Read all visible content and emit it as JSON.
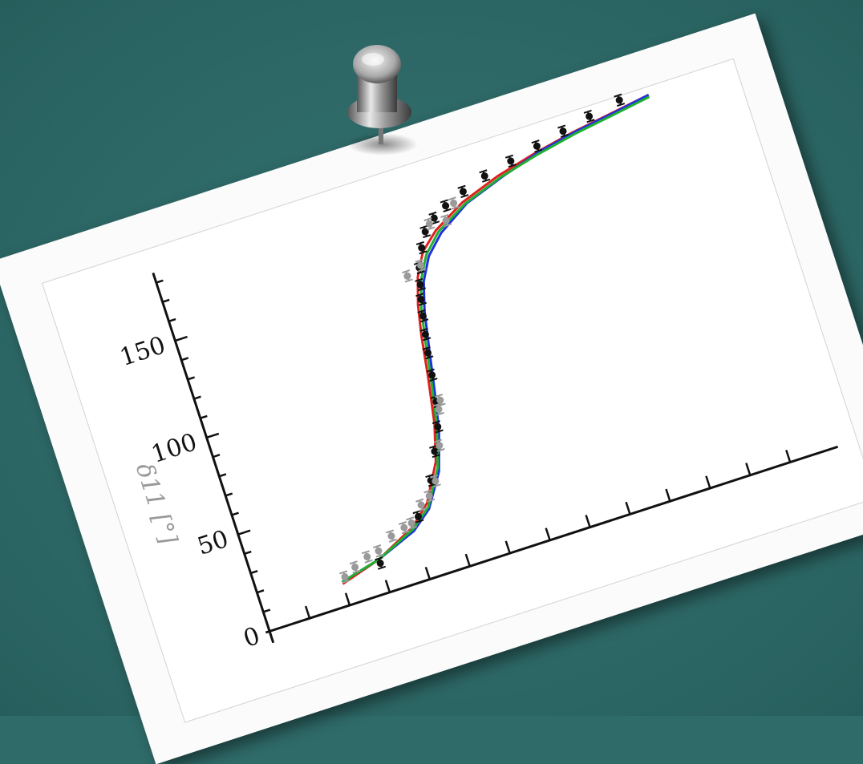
{
  "chart_data": {
    "type": "scatter",
    "title": "",
    "xlabel": "",
    "ylabel": "δ11 [°]",
    "ylim": [
      0,
      185
    ],
    "xlim": [
      0,
      14
    ],
    "y_ticks": [
      0,
      50,
      100,
      150
    ],
    "y_tick_labels": [
      "0",
      "50",
      "100",
      "150"
    ],
    "x_ticks": [
      1,
      2,
      3,
      4,
      5,
      6,
      7,
      8,
      9,
      10,
      11,
      12,
      13
    ],
    "grid": false,
    "series": [
      {
        "kind": "points",
        "color": "#111111",
        "x": [
          3.0,
          4.2,
          4.75,
          5.05,
          5.3,
          5.45,
          5.55,
          5.62,
          5.7,
          5.78,
          5.86,
          5.95,
          6.05,
          6.25,
          6.45,
          6.75,
          7.1,
          7.6,
          8.2,
          8.9,
          9.6,
          10.3,
          11.0,
          11.8
        ],
        "y": [
          15,
          31,
          46,
          59,
          70,
          82,
          95,
          106,
          115,
          124,
          132,
          139,
          147,
          156,
          163,
          168,
          172,
          176,
          180,
          183,
          186,
          189,
          192,
          195
        ]
      },
      {
        "kind": "points",
        "color": "#9a9a9a",
        "x": [
          2.1,
          2.4,
          2.75,
          3.05,
          3.45,
          3.8,
          4.0,
          4.35,
          4.6,
          4.85,
          5.2,
          5.45,
          5.55,
          5.72,
          6.1,
          6.6,
          7.0,
          7.3
        ],
        "y": [
          14,
          17,
          20,
          21,
          26,
          28,
          29,
          36,
          39,
          45,
          61,
          78,
          82,
          145,
          148,
          166,
          165,
          172
        ]
      },
      {
        "kind": "line",
        "color": "#e02020",
        "x": [
          2.0,
          3.0,
          4.0,
          4.5,
          5.0,
          5.25,
          5.45,
          5.6,
          5.75,
          5.95,
          6.25,
          6.7,
          7.5,
          8.5,
          9.5,
          10.5,
          11.5,
          12.5
        ],
        "y": [
          11,
          17,
          27,
          36,
          54,
          72,
          95,
          115,
          130,
          143,
          154,
          162,
          171,
          178,
          183,
          187,
          190,
          193
        ]
      },
      {
        "kind": "line",
        "color": "#2030e0",
        "x": [
          2.0,
          3.0,
          4.0,
          4.5,
          5.0,
          5.3,
          5.5,
          5.7,
          5.85,
          6.05,
          6.35,
          6.8,
          7.6,
          8.6,
          9.6,
          10.6,
          11.6,
          12.5
        ],
        "y": [
          12,
          17,
          25,
          33,
          49,
          68,
          88,
          110,
          126,
          140,
          151,
          160,
          170,
          177,
          183,
          187,
          190,
          193
        ]
      },
      {
        "kind": "line",
        "color": "#20b030",
        "x": [
          2.0,
          3.0,
          4.0,
          4.5,
          5.0,
          5.28,
          5.48,
          5.65,
          5.8,
          6.0,
          6.3,
          6.75,
          7.55,
          8.55,
          9.55,
          10.55,
          11.55,
          12.5
        ],
        "y": [
          12,
          17,
          26,
          34,
          51,
          70,
          91,
          112,
          128,
          141,
          152,
          161,
          170,
          177,
          182,
          186,
          189,
          192
        ]
      }
    ]
  }
}
